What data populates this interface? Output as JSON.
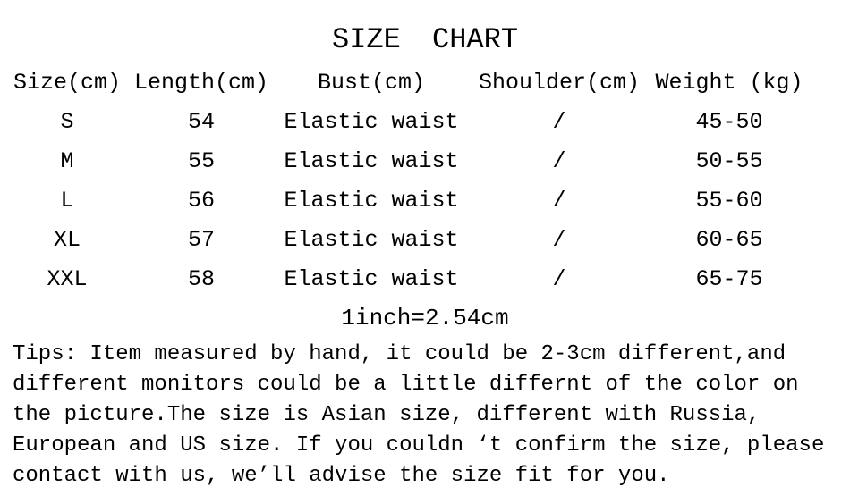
{
  "title": "SIZE CHART",
  "table": {
    "headers": [
      "Size(cm)",
      "Length(cm)",
      "Bust(cm)",
      "Shoulder(cm)",
      "Weight (kg)"
    ],
    "rows": [
      [
        "S",
        "54",
        "Elastic waist",
        "/",
        "45-50"
      ],
      [
        "M",
        "55",
        "Elastic waist",
        "/",
        "50-55"
      ],
      [
        "L",
        "56",
        "Elastic waist",
        "/",
        "55-60"
      ],
      [
        "XL",
        "57",
        "Elastic waist",
        "/",
        "60-65"
      ],
      [
        "XXL",
        "58",
        "Elastic waist",
        "/",
        "65-75"
      ]
    ]
  },
  "conversion_note": "1inch=2.54cm",
  "tips": {
    "lines": [
      "Tips: Item measured by hand, it could be 2-3cm different,and",
      "different monitors could be a little differnt of the color on",
      "the picture.The size is Asian size, different with Russia,",
      "European and US size. If you couldn ‘t confirm the size, please",
      "contact with us, we’ll advise the size fit for you."
    ]
  },
  "colors": {
    "text": "#000000",
    "background": "#ffffff"
  }
}
